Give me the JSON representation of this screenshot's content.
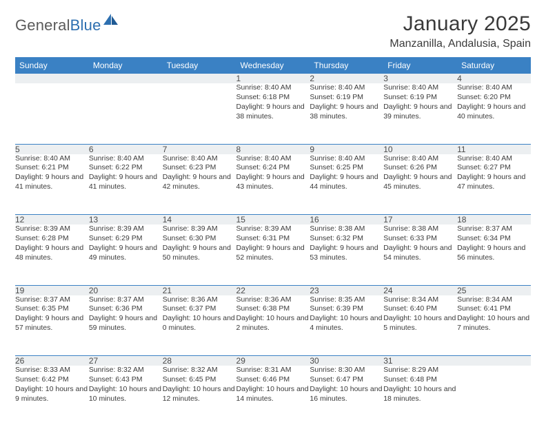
{
  "logo": {
    "text1": "General",
    "text2": "Blue"
  },
  "title": "January 2025",
  "location": "Manzanilla, Andalusia, Spain",
  "colors": {
    "header_bg": "#3a81c4",
    "header_text": "#ffffff",
    "daynum_bg": "#eceff1",
    "border": "#3a81c4",
    "body_text": "#3a3a3a",
    "title_text": "#3a3a3a",
    "logo_gray": "#5a5a5a",
    "logo_blue": "#2d6fb0"
  },
  "weekdays": [
    "Sunday",
    "Monday",
    "Tuesday",
    "Wednesday",
    "Thursday",
    "Friday",
    "Saturday"
  ],
  "weeks": [
    [
      null,
      null,
      null,
      {
        "n": "1",
        "sr": "8:40 AM",
        "ss": "6:18 PM",
        "dl": "9 hours and 38 minutes."
      },
      {
        "n": "2",
        "sr": "8:40 AM",
        "ss": "6:19 PM",
        "dl": "9 hours and 38 minutes."
      },
      {
        "n": "3",
        "sr": "8:40 AM",
        "ss": "6:19 PM",
        "dl": "9 hours and 39 minutes."
      },
      {
        "n": "4",
        "sr": "8:40 AM",
        "ss": "6:20 PM",
        "dl": "9 hours and 40 minutes."
      }
    ],
    [
      {
        "n": "5",
        "sr": "8:40 AM",
        "ss": "6:21 PM",
        "dl": "9 hours and 41 minutes."
      },
      {
        "n": "6",
        "sr": "8:40 AM",
        "ss": "6:22 PM",
        "dl": "9 hours and 41 minutes."
      },
      {
        "n": "7",
        "sr": "8:40 AM",
        "ss": "6:23 PM",
        "dl": "9 hours and 42 minutes."
      },
      {
        "n": "8",
        "sr": "8:40 AM",
        "ss": "6:24 PM",
        "dl": "9 hours and 43 minutes."
      },
      {
        "n": "9",
        "sr": "8:40 AM",
        "ss": "6:25 PM",
        "dl": "9 hours and 44 minutes."
      },
      {
        "n": "10",
        "sr": "8:40 AM",
        "ss": "6:26 PM",
        "dl": "9 hours and 45 minutes."
      },
      {
        "n": "11",
        "sr": "8:40 AM",
        "ss": "6:27 PM",
        "dl": "9 hours and 47 minutes."
      }
    ],
    [
      {
        "n": "12",
        "sr": "8:39 AM",
        "ss": "6:28 PM",
        "dl": "9 hours and 48 minutes."
      },
      {
        "n": "13",
        "sr": "8:39 AM",
        "ss": "6:29 PM",
        "dl": "9 hours and 49 minutes."
      },
      {
        "n": "14",
        "sr": "8:39 AM",
        "ss": "6:30 PM",
        "dl": "9 hours and 50 minutes."
      },
      {
        "n": "15",
        "sr": "8:39 AM",
        "ss": "6:31 PM",
        "dl": "9 hours and 52 minutes."
      },
      {
        "n": "16",
        "sr": "8:38 AM",
        "ss": "6:32 PM",
        "dl": "9 hours and 53 minutes."
      },
      {
        "n": "17",
        "sr": "8:38 AM",
        "ss": "6:33 PM",
        "dl": "9 hours and 54 minutes."
      },
      {
        "n": "18",
        "sr": "8:37 AM",
        "ss": "6:34 PM",
        "dl": "9 hours and 56 minutes."
      }
    ],
    [
      {
        "n": "19",
        "sr": "8:37 AM",
        "ss": "6:35 PM",
        "dl": "9 hours and 57 minutes."
      },
      {
        "n": "20",
        "sr": "8:37 AM",
        "ss": "6:36 PM",
        "dl": "9 hours and 59 minutes."
      },
      {
        "n": "21",
        "sr": "8:36 AM",
        "ss": "6:37 PM",
        "dl": "10 hours and 0 minutes."
      },
      {
        "n": "22",
        "sr": "8:36 AM",
        "ss": "6:38 PM",
        "dl": "10 hours and 2 minutes."
      },
      {
        "n": "23",
        "sr": "8:35 AM",
        "ss": "6:39 PM",
        "dl": "10 hours and 4 minutes."
      },
      {
        "n": "24",
        "sr": "8:34 AM",
        "ss": "6:40 PM",
        "dl": "10 hours and 5 minutes."
      },
      {
        "n": "25",
        "sr": "8:34 AM",
        "ss": "6:41 PM",
        "dl": "10 hours and 7 minutes."
      }
    ],
    [
      {
        "n": "26",
        "sr": "8:33 AM",
        "ss": "6:42 PM",
        "dl": "10 hours and 9 minutes."
      },
      {
        "n": "27",
        "sr": "8:32 AM",
        "ss": "6:43 PM",
        "dl": "10 hours and 10 minutes."
      },
      {
        "n": "28",
        "sr": "8:32 AM",
        "ss": "6:45 PM",
        "dl": "10 hours and 12 minutes."
      },
      {
        "n": "29",
        "sr": "8:31 AM",
        "ss": "6:46 PM",
        "dl": "10 hours and 14 minutes."
      },
      {
        "n": "30",
        "sr": "8:30 AM",
        "ss": "6:47 PM",
        "dl": "10 hours and 16 minutes."
      },
      {
        "n": "31",
        "sr": "8:29 AM",
        "ss": "6:48 PM",
        "dl": "10 hours and 18 minutes."
      },
      null
    ]
  ],
  "labels": {
    "sunrise": "Sunrise:",
    "sunset": "Sunset:",
    "daylight": "Daylight:"
  }
}
